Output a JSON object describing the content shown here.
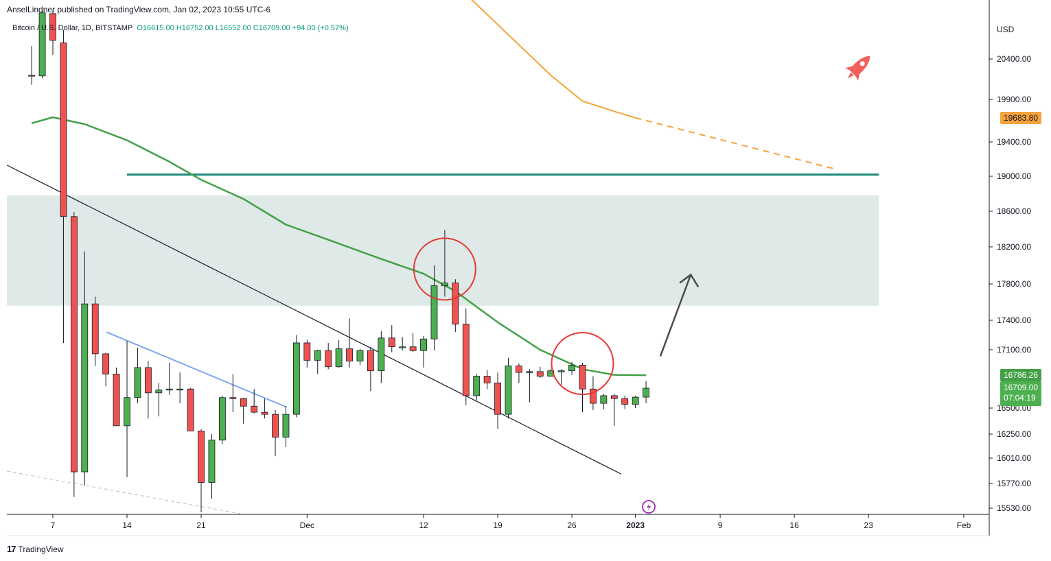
{
  "header": {
    "publisher": "AnselLindner published on TradingView.com, Jan 02, 2023 10:55 UTC-6",
    "symbol": "Bitcoin / U.S. Dollar, 1D, BITSTAMP",
    "ohlc": "O16615.00  H16752.00  L16552.00  C16709.00  +94.00 (+0.57%)"
  },
  "footer": {
    "brand_logo": "17",
    "brand": "TradingView"
  },
  "price_tags": {
    "ma200": "19683.80",
    "ma50": "16786.26",
    "last": "16709.00",
    "countdown": "07:04:19"
  },
  "colors": {
    "up": "#4caf50",
    "down": "#ef5350",
    "ma50": "#43a047",
    "ma200": "#f7a23b",
    "resistance": "#1b8a7a",
    "zone": "#dfe9e7",
    "trend": "#131722",
    "trend_blue": "#7ba7ef",
    "circle": "#e53935",
    "arrow": "#4a4a4a",
    "axis": "#131722"
  },
  "chart_data": {
    "type": "candlestick",
    "currency": "USD",
    "y_ticks": [
      20400,
      19900,
      19400,
      19000,
      18600,
      18200,
      17800,
      17400,
      17100,
      16500,
      16250,
      16010,
      15770,
      15530
    ],
    "x_ticks": [
      {
        "date": "2022-11-07",
        "label": "7"
      },
      {
        "date": "2022-11-14",
        "label": "14"
      },
      {
        "date": "2022-11-21",
        "label": "21"
      },
      {
        "date": "2022-12-01",
        "label": "Dec"
      },
      {
        "date": "2022-12-12",
        "label": "12"
      },
      {
        "date": "2022-12-19",
        "label": "19"
      },
      {
        "date": "2022-12-26",
        "label": "26"
      },
      {
        "date": "2023-01-01",
        "label": "2023"
      },
      {
        "date": "2023-01-09",
        "label": "9"
      },
      {
        "date": "2023-01-16",
        "label": "16"
      },
      {
        "date": "2023-01-23",
        "label": "23"
      },
      {
        "date": "2023-02-01",
        "label": "Feb"
      }
    ],
    "candles": [
      {
        "date": "2022-11-05",
        "o": 20200,
        "h": 20560,
        "l": 20080,
        "c": 20190
      },
      {
        "date": "2022-11-06",
        "o": 20190,
        "h": 21000,
        "l": 20160,
        "c": 20970
      },
      {
        "date": "2022-11-07",
        "o": 20960,
        "h": 21000,
        "l": 20450,
        "c": 20630
      },
      {
        "date": "2022-11-08",
        "o": 20600,
        "h": 20760,
        "l": 17170,
        "c": 18540
      },
      {
        "date": "2022-11-09",
        "o": 18540,
        "h": 18590,
        "l": 15640,
        "c": 15880
      },
      {
        "date": "2022-11-10",
        "o": 15880,
        "h": 18150,
        "l": 15750,
        "c": 17580
      },
      {
        "date": "2022-11-11",
        "o": 17580,
        "h": 17660,
        "l": 16900,
        "c": 17050
      },
      {
        "date": "2022-11-12",
        "o": 17050,
        "h": 17060,
        "l": 16720,
        "c": 16800
      },
      {
        "date": "2022-11-13",
        "o": 16800,
        "h": 16880,
        "l": 16350,
        "c": 16330
      },
      {
        "date": "2022-11-14",
        "o": 16330,
        "h": 17190,
        "l": 15830,
        "c": 16610
      },
      {
        "date": "2022-11-15",
        "o": 16610,
        "h": 17120,
        "l": 16550,
        "c": 16880
      },
      {
        "date": "2022-11-16",
        "o": 16880,
        "h": 16960,
        "l": 16400,
        "c": 16660
      },
      {
        "date": "2022-11-17",
        "o": 16660,
        "h": 16740,
        "l": 16420,
        "c": 16690
      },
      {
        "date": "2022-11-18",
        "o": 16690,
        "h": 16940,
        "l": 16640,
        "c": 16700
      },
      {
        "date": "2022-11-19",
        "o": 16700,
        "h": 16820,
        "l": 16550,
        "c": 16700
      },
      {
        "date": "2022-11-20",
        "o": 16700,
        "h": 16710,
        "l": 16280,
        "c": 16280
      },
      {
        "date": "2022-11-21",
        "o": 16280,
        "h": 16300,
        "l": 15490,
        "c": 15780
      },
      {
        "date": "2022-11-22",
        "o": 15780,
        "h": 16250,
        "l": 15620,
        "c": 16190
      },
      {
        "date": "2022-11-23",
        "o": 16190,
        "h": 16630,
        "l": 16150,
        "c": 16610
      },
      {
        "date": "2022-11-24",
        "o": 16610,
        "h": 16800,
        "l": 16460,
        "c": 16600
      },
      {
        "date": "2022-11-25",
        "o": 16600,
        "h": 16610,
        "l": 16350,
        "c": 16520
      },
      {
        "date": "2022-11-26",
        "o": 16520,
        "h": 16700,
        "l": 16450,
        "c": 16460
      },
      {
        "date": "2022-11-27",
        "o": 16460,
        "h": 16600,
        "l": 16400,
        "c": 16440
      },
      {
        "date": "2022-11-28",
        "o": 16440,
        "h": 16480,
        "l": 16030,
        "c": 16220
      },
      {
        "date": "2022-11-29",
        "o": 16220,
        "h": 16520,
        "l": 16120,
        "c": 16440
      },
      {
        "date": "2022-11-30",
        "o": 16440,
        "h": 17250,
        "l": 16410,
        "c": 17170
      },
      {
        "date": "2022-12-01",
        "o": 17170,
        "h": 17200,
        "l": 16880,
        "c": 16970
      },
      {
        "date": "2022-12-02",
        "o": 16970,
        "h": 17100,
        "l": 16800,
        "c": 17090
      },
      {
        "date": "2022-12-03",
        "o": 17090,
        "h": 17170,
        "l": 16860,
        "c": 16890
      },
      {
        "date": "2022-12-04",
        "o": 16890,
        "h": 17200,
        "l": 16880,
        "c": 17110
      },
      {
        "date": "2022-12-05",
        "o": 17110,
        "h": 17420,
        "l": 16880,
        "c": 16960
      },
      {
        "date": "2022-12-06",
        "o": 16960,
        "h": 17110,
        "l": 16910,
        "c": 17090
      },
      {
        "date": "2022-12-07",
        "o": 17090,
        "h": 17130,
        "l": 16680,
        "c": 16840
      },
      {
        "date": "2022-12-08",
        "o": 16840,
        "h": 17290,
        "l": 16740,
        "c": 17220
      },
      {
        "date": "2022-12-09",
        "o": 17220,
        "h": 17350,
        "l": 17070,
        "c": 17130
      },
      {
        "date": "2022-12-10",
        "o": 17130,
        "h": 17230,
        "l": 17090,
        "c": 17130
      },
      {
        "date": "2022-12-11",
        "o": 17130,
        "h": 17270,
        "l": 17070,
        "c": 17090
      },
      {
        "date": "2022-12-12",
        "o": 17090,
        "h": 17240,
        "l": 16880,
        "c": 17210
      },
      {
        "date": "2022-12-13",
        "o": 17210,
        "h": 18000,
        "l": 17090,
        "c": 17780
      },
      {
        "date": "2022-12-14",
        "o": 17780,
        "h": 18390,
        "l": 17660,
        "c": 17810
      },
      {
        "date": "2022-12-15",
        "o": 17810,
        "h": 17850,
        "l": 17280,
        "c": 17360
      },
      {
        "date": "2022-12-16",
        "o": 17360,
        "h": 17530,
        "l": 16530,
        "c": 16630
      },
      {
        "date": "2022-12-17",
        "o": 16630,
        "h": 16800,
        "l": 16580,
        "c": 16780
      },
      {
        "date": "2022-12-18",
        "o": 16780,
        "h": 16850,
        "l": 16700,
        "c": 16740
      },
      {
        "date": "2022-12-19",
        "o": 16740,
        "h": 16820,
        "l": 16300,
        "c": 16440
      },
      {
        "date": "2022-12-20",
        "o": 16440,
        "h": 17000,
        "l": 16400,
        "c": 16900
      },
      {
        "date": "2022-12-21",
        "o": 16900,
        "h": 16930,
        "l": 16740,
        "c": 16820
      },
      {
        "date": "2022-12-22",
        "o": 16820,
        "h": 16860,
        "l": 16560,
        "c": 16830
      },
      {
        "date": "2022-12-23",
        "o": 16830,
        "h": 16890,
        "l": 16770,
        "c": 16780
      },
      {
        "date": "2022-12-24",
        "o": 16780,
        "h": 16860,
        "l": 16780,
        "c": 16840
      },
      {
        "date": "2022-12-25",
        "o": 16840,
        "h": 16860,
        "l": 16730,
        "c": 16840
      },
      {
        "date": "2022-12-26",
        "o": 16840,
        "h": 16950,
        "l": 16790,
        "c": 16910
      },
      {
        "date": "2022-12-27",
        "o": 16910,
        "h": 16940,
        "l": 16460,
        "c": 16700
      },
      {
        "date": "2022-12-28",
        "o": 16700,
        "h": 16780,
        "l": 16480,
        "c": 16550
      },
      {
        "date": "2022-12-29",
        "o": 16550,
        "h": 16650,
        "l": 16490,
        "c": 16630
      },
      {
        "date": "2022-12-30",
        "o": 16630,
        "h": 16650,
        "l": 16330,
        "c": 16600
      },
      {
        "date": "2022-12-31",
        "o": 16600,
        "h": 16630,
        "l": 16490,
        "c": 16540
      },
      {
        "date": "2023-01-01",
        "o": 16540,
        "h": 16630,
        "l": 16500,
        "c": 16615
      },
      {
        "date": "2023-01-02",
        "o": 16615,
        "h": 16752,
        "l": 16552,
        "c": 16709
      }
    ],
    "ma50": [
      {
        "date": "2022-11-05",
        "v": 19620
      },
      {
        "date": "2022-11-07",
        "v": 19690
      },
      {
        "date": "2022-11-10",
        "v": 19610
      },
      {
        "date": "2022-11-14",
        "v": 19420
      },
      {
        "date": "2022-11-18",
        "v": 19170
      },
      {
        "date": "2022-11-21",
        "v": 18960
      },
      {
        "date": "2022-11-25",
        "v": 18740
      },
      {
        "date": "2022-11-29",
        "v": 18450
      },
      {
        "date": "2022-12-03",
        "v": 18280
      },
      {
        "date": "2022-12-08",
        "v": 18070
      },
      {
        "date": "2022-12-12",
        "v": 17910
      },
      {
        "date": "2022-12-15",
        "v": 17720
      },
      {
        "date": "2022-12-19",
        "v": 17380
      },
      {
        "date": "2022-12-23",
        "v": 17100
      },
      {
        "date": "2022-12-27",
        "v": 16860
      },
      {
        "date": "2022-12-30",
        "v": 16790
      },
      {
        "date": "2023-01-02",
        "v": 16786
      }
    ],
    "ma200": [
      {
        "date": "2022-12-12",
        "v": 21700
      },
      {
        "date": "2022-12-16",
        "v": 21200
      },
      {
        "date": "2022-12-20",
        "v": 20700
      },
      {
        "date": "2022-12-24",
        "v": 20200
      },
      {
        "date": "2022-12-27",
        "v": 19880
      },
      {
        "date": "2022-12-30",
        "v": 19760
      },
      {
        "date": "2023-01-01",
        "v": 19684
      }
    ],
    "ma200_projection": [
      {
        "date": "2023-01-01",
        "v": 19684
      },
      {
        "date": "2023-01-20",
        "v": 19080
      }
    ],
    "resistance": {
      "price": 19020,
      "from": "2022-11-14",
      "to": "2023-01-24"
    },
    "zone": {
      "low": 17560,
      "high": 18780,
      "from": "2022-11-05",
      "to": "2023-01-24"
    },
    "trendline": {
      "from": {
        "date": "2022-11-05",
        "price": 19130
      },
      "to": {
        "date": "2022-12-30",
        "price": 15860
      }
    },
    "trendline_blue": {
      "from": {
        "date": "2022-11-12",
        "price": 17280
      },
      "to": {
        "date": "2022-11-29",
        "price": 16510
      }
    },
    "circles": [
      {
        "date": "2022-12-14",
        "price": 17960
      },
      {
        "date": "2022-12-27",
        "price": 16930
      }
    ],
    "arrow": {
      "from": {
        "date": "2023-01-04",
        "price": 17020
      },
      "to": {
        "date": "2023-01-07",
        "price": 17900
      }
    }
  }
}
